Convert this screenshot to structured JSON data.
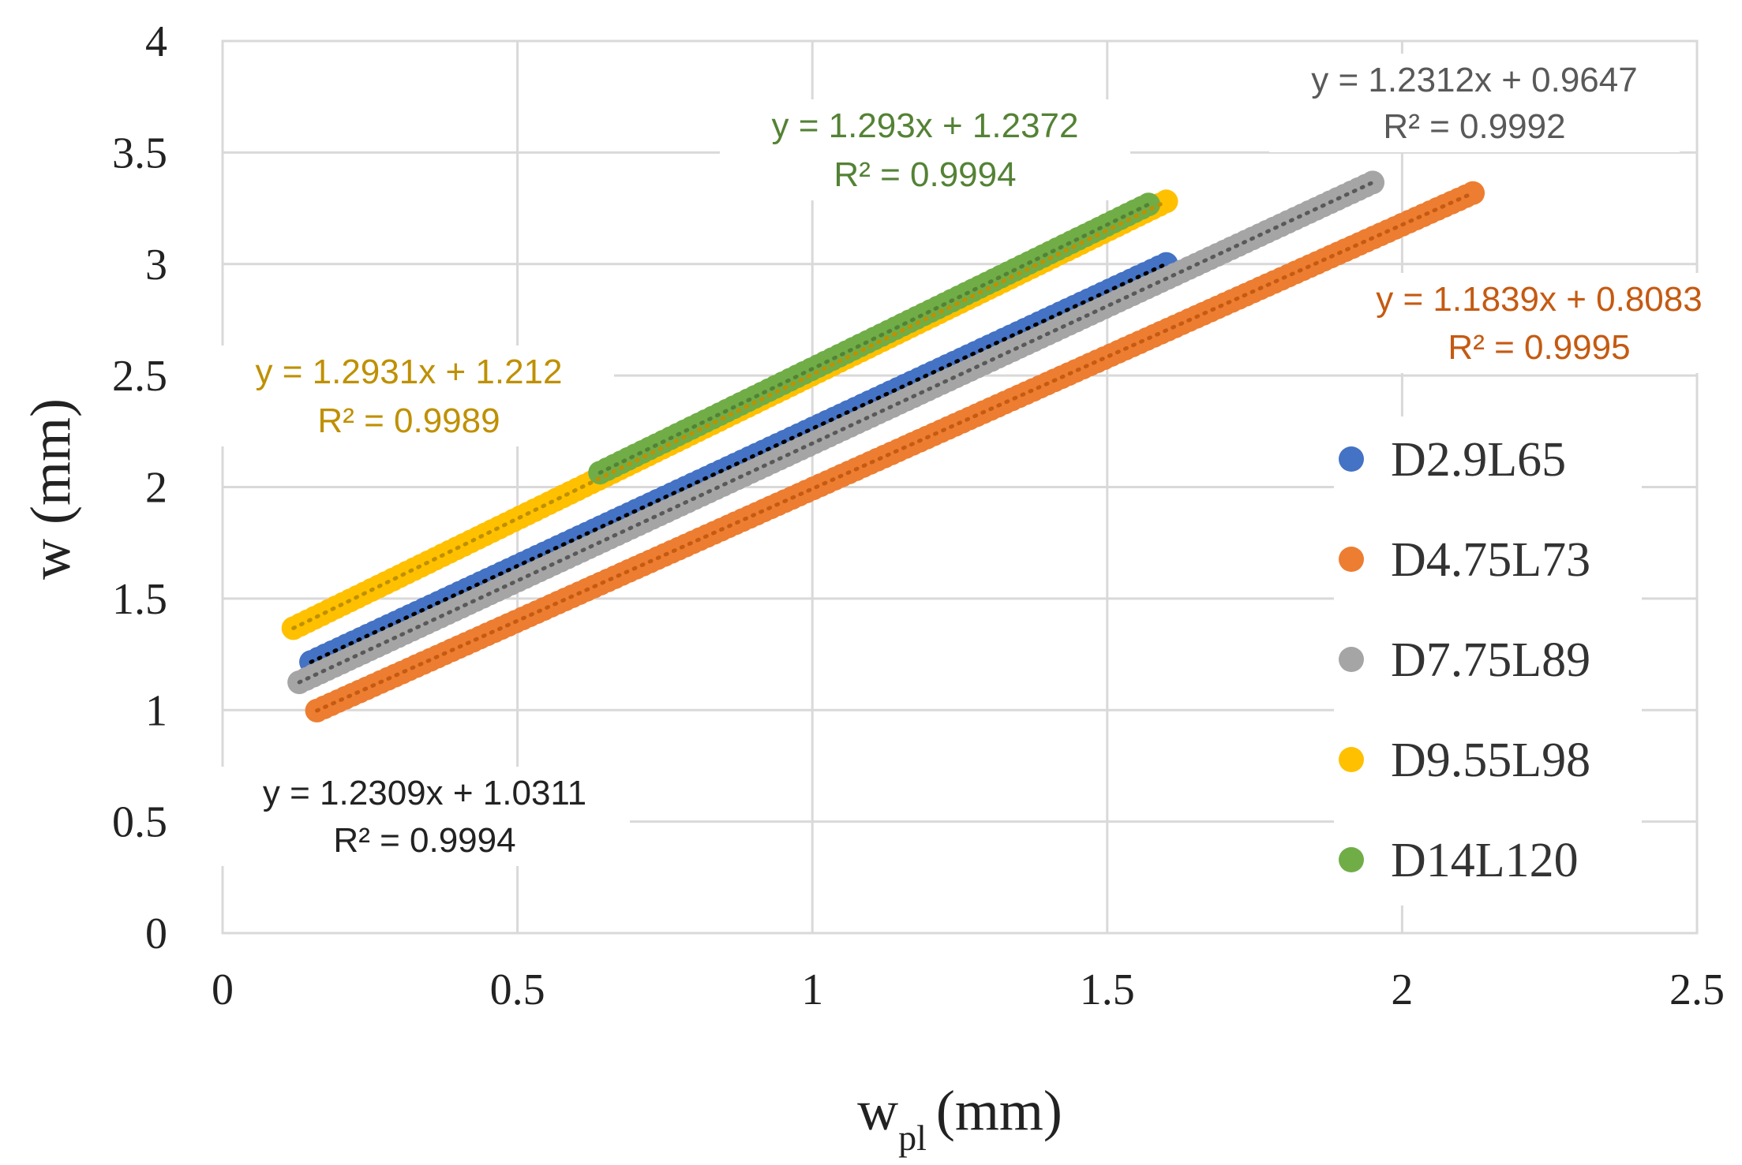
{
  "chart_data": {
    "type": "scatter",
    "title": "",
    "xlabel": "w",
    "xlabel_sub": "pl",
    "xlabel_unit": "(mm)",
    "ylabel": "w (mm)",
    "xlim": [
      0,
      2.5
    ],
    "ylim": [
      0,
      4
    ],
    "x_ticks": [
      "0",
      "0.5",
      "1",
      "1.5",
      "2",
      "2.5"
    ],
    "y_ticks": [
      "0",
      "0.5",
      "1",
      "1.5",
      "2",
      "2.5",
      "3",
      "3.5",
      "4"
    ],
    "grid": true,
    "legend_position": "right",
    "series": [
      {
        "name": "D2.9L65",
        "color": "#4472C4",
        "trend_color": "#000000",
        "x_range": [
          0.15,
          1.6
        ],
        "slope": 1.2309,
        "intercept": 1.0311,
        "equation": "y = 1.2309x + 1.0311",
        "r2": "R² = 0.9994"
      },
      {
        "name": "D4.75L73",
        "color": "#ED7D31",
        "trend_color": "#C55A11",
        "x_range": [
          0.16,
          2.12
        ],
        "slope": 1.1839,
        "intercept": 0.8083,
        "equation": "y = 1.1839x + 0.8083",
        "r2": "R² = 0.9995"
      },
      {
        "name": "D7.75L89",
        "color": "#A5A5A5",
        "trend_color": "#595959",
        "x_range": [
          0.13,
          1.95
        ],
        "slope": 1.2312,
        "intercept": 0.9647,
        "equation": "y = 1.2312x + 0.9647",
        "r2": "R² = 0.9992"
      },
      {
        "name": "D9.55L98",
        "color": "#FFC000",
        "trend_color": "#BF9000",
        "x_range": [
          0.12,
          1.6
        ],
        "slope": 1.2931,
        "intercept": 1.212,
        "equation": "y = 1.2931x + 1.212",
        "r2": "R² = 0.9989"
      },
      {
        "name": "D14L120",
        "color": "#70AD47",
        "trend_color": "#548235",
        "x_range": [
          0.64,
          1.57
        ],
        "slope": 1.293,
        "intercept": 1.2372,
        "equation": "y = 1.293x + 1.2372",
        "r2": "R² = 0.9994"
      }
    ],
    "trend_label_colors": {
      "D2.9L65": "#222222",
      "D4.75L73": "#C55A11",
      "D7.75L89": "#595959",
      "D9.55L98": "#BF9000",
      "D14L120": "#548235"
    }
  }
}
